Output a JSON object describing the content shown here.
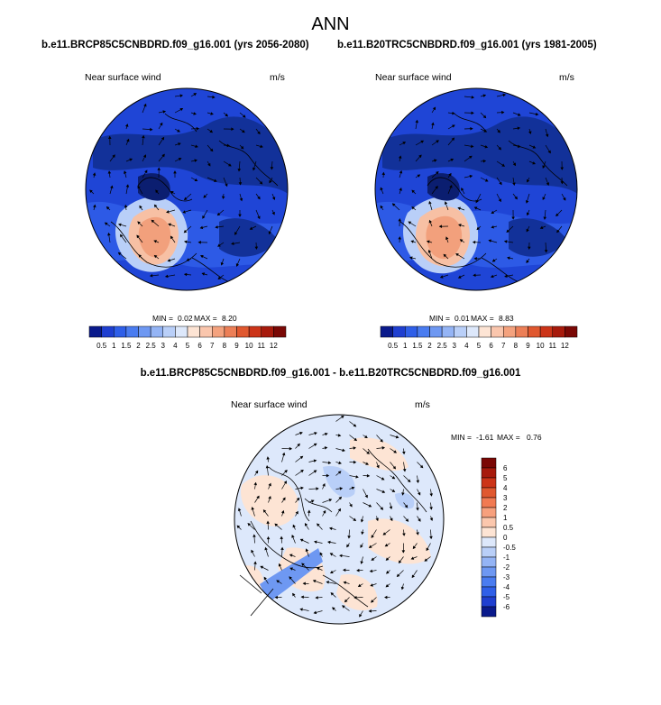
{
  "figure_title": "ANN",
  "panels": [
    {
      "title": "b.e11.BRCP85C5CNBDRD.f09_g16.001 (yrs 2056-2080)",
      "field": "Near surface wind",
      "units": "m/s",
      "min_label": "MIN =",
      "min": "0.02",
      "max_label": "MAX =",
      "max": "8.20"
    },
    {
      "title": "b.e11.B20TRC5CNBDRD.f09_g16.001 (yrs 1981-2005)",
      "field": "Near surface wind",
      "units": "m/s",
      "min_label": "MIN =",
      "min": "0.01",
      "max_label": "MAX =",
      "max": "8.83"
    },
    {
      "title": "b.e11.BRCP85C5CNBDRD.f09_g16.001 - b.e11.B20TRC5CNBDRD.f09_g16.001",
      "field": "Near surface wind",
      "units": "m/s",
      "min_label": "MIN =",
      "min": "-1.61",
      "max_label": "MAX =",
      "max": "0.76"
    }
  ],
  "colorbar_abs": {
    "labels": [
      "0.5",
      "1",
      "1.5",
      "2",
      "2.5",
      "3",
      "4",
      "5",
      "6",
      "7",
      "8",
      "9",
      "10",
      "11",
      "12"
    ],
    "colors": [
      "#0a1a8c",
      "#1f3fd0",
      "#2f5fe8",
      "#4a7cf0",
      "#6e98f2",
      "#94b4f5",
      "#b9cff8",
      "#dde8fb",
      "#fde4d4",
      "#fac6ad",
      "#f4a27e",
      "#ec7f57",
      "#e0582f",
      "#cc3418",
      "#a71a0c",
      "#7a0805"
    ]
  },
  "colorbar_diff": {
    "labels": [
      "6",
      "5",
      "4",
      "3",
      "2",
      "1",
      "0.5",
      "0",
      "-0.5",
      "-1",
      "-2",
      "-3",
      "-4",
      "-5",
      "-6"
    ],
    "colors": [
      "#7a0805",
      "#a71a0c",
      "#cc3418",
      "#e0582f",
      "#f17a52",
      "#f7a07d",
      "#fbc7ad",
      "#fde4d4",
      "#dde8fb",
      "#b9cff8",
      "#94b4f5",
      "#6e98f2",
      "#4a7cf0",
      "#2f5fe8",
      "#1f3fd0",
      "#0a1a8c"
    ]
  }
}
